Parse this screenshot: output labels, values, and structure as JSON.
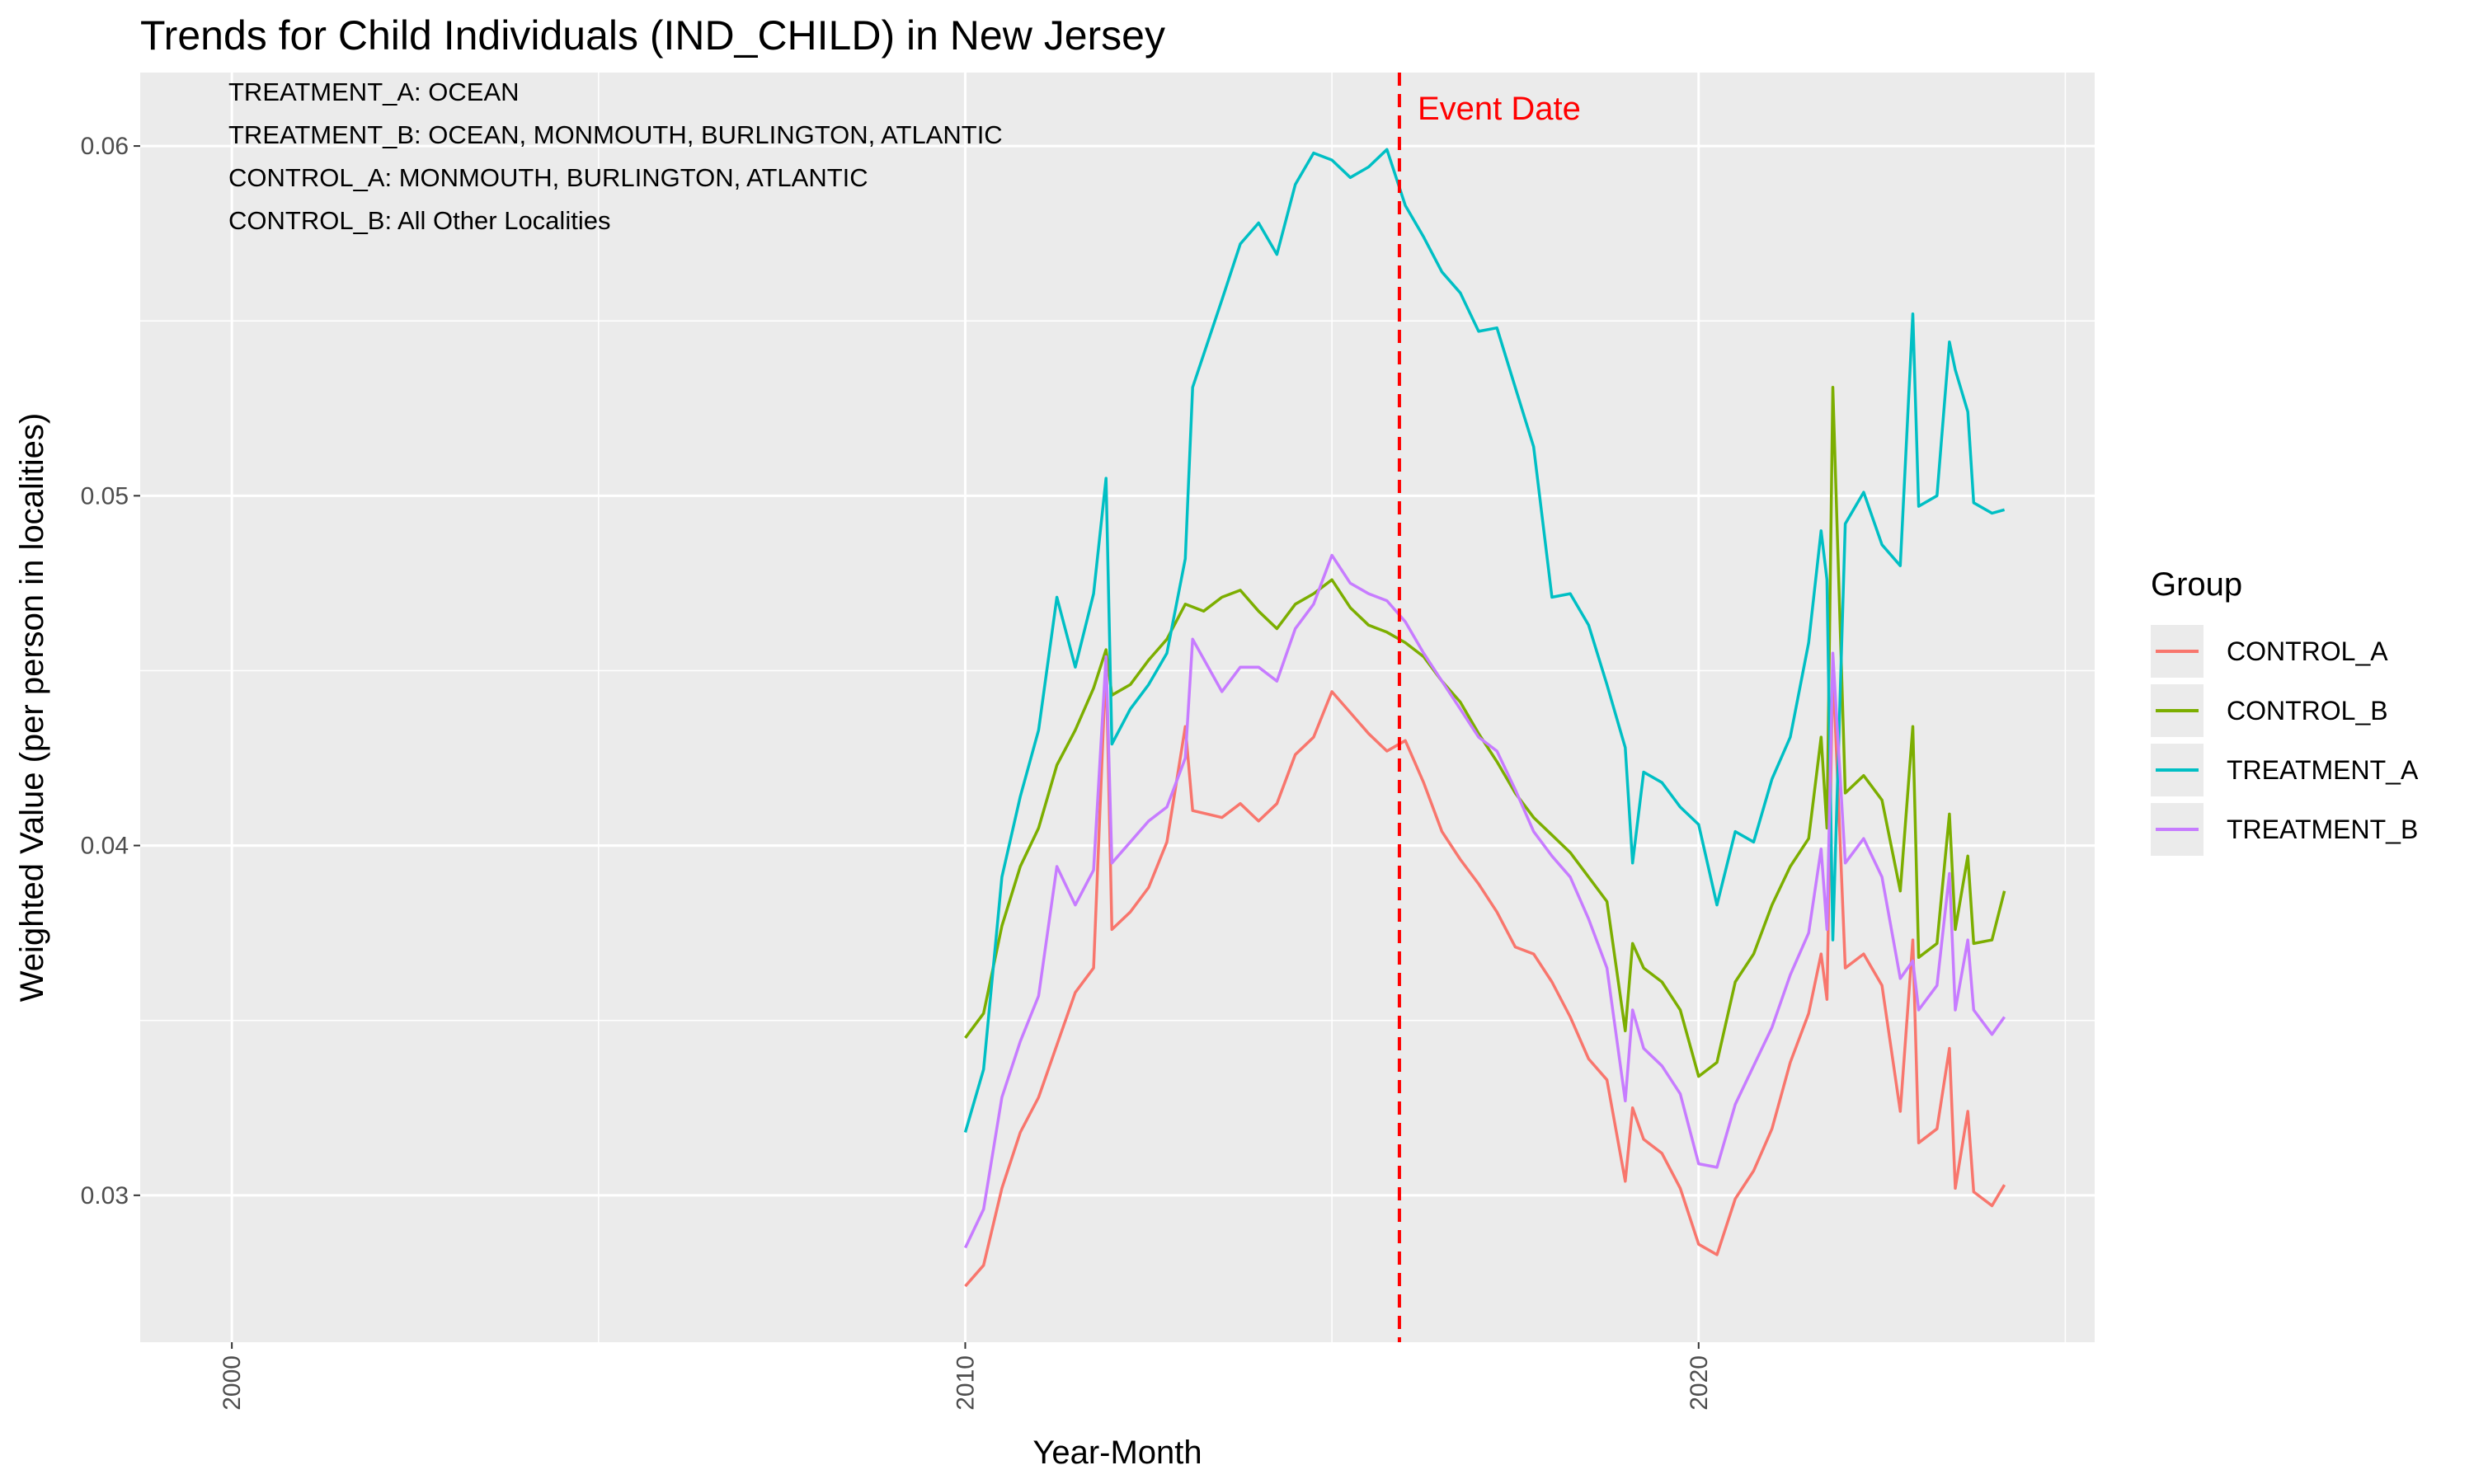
{
  "chart_data": {
    "type": "line",
    "title": "Trends for Child Individuals (IND_CHILD) in New Jersey",
    "xlabel": "Year-Month",
    "ylabel": "Weighted Value (per person in localities)",
    "xlim": [
      1998.75,
      2025.4
    ],
    "ylim": [
      0.0258,
      0.0621
    ],
    "x_ticks": [
      2000,
      2010,
      2020
    ],
    "x_minor_ticks": [
      2005,
      2015,
      2025
    ],
    "y_ticks": [
      0.03,
      0.04,
      0.05,
      0.06
    ],
    "y_tick_labels": [
      "0.03",
      "0.04",
      "0.05",
      "0.06"
    ],
    "y_minor_ticks": [
      0.035,
      0.045,
      0.055
    ],
    "grid": true,
    "legend_title": "Group",
    "legend_position": "right",
    "annotations": [
      "TREATMENT_A: OCEAN",
      "TREATMENT_B: OCEAN, MONMOUTH, BURLINGTON, ATLANTIC",
      "CONTROL_A: MONMOUTH, BURLINGTON, ATLANTIC",
      "CONTROL_B: All Other Localities"
    ],
    "event_line": {
      "x": 2015.92,
      "label": "Event Date",
      "color": "#ff0000"
    },
    "series": [
      {
        "name": "CONTROL_A",
        "color": "#F8766D",
        "points": [
          [
            2010.0,
            0.0274
          ],
          [
            2010.25,
            0.028
          ],
          [
            2010.5,
            0.0302
          ],
          [
            2010.75,
            0.0318
          ],
          [
            2011.0,
            0.0328
          ],
          [
            2011.25,
            0.0343
          ],
          [
            2011.5,
            0.0358
          ],
          [
            2011.75,
            0.0365
          ],
          [
            2011.92,
            0.0453
          ],
          [
            2012.0,
            0.0376
          ],
          [
            2012.25,
            0.0381
          ],
          [
            2012.5,
            0.0388
          ],
          [
            2012.75,
            0.0401
          ],
          [
            2013.0,
            0.0434
          ],
          [
            2013.1,
            0.041
          ],
          [
            2013.5,
            0.0408
          ],
          [
            2013.75,
            0.0412
          ],
          [
            2014.0,
            0.0407
          ],
          [
            2014.25,
            0.0412
          ],
          [
            2014.5,
            0.0426
          ],
          [
            2014.75,
            0.0431
          ],
          [
            2015.0,
            0.0444
          ],
          [
            2015.25,
            0.0438
          ],
          [
            2015.5,
            0.0432
          ],
          [
            2015.75,
            0.0427
          ],
          [
            2016.0,
            0.043
          ],
          [
            2016.25,
            0.0418
          ],
          [
            2016.5,
            0.0404
          ],
          [
            2016.75,
            0.0396
          ],
          [
            2017.0,
            0.0389
          ],
          [
            2017.25,
            0.0381
          ],
          [
            2017.5,
            0.0371
          ],
          [
            2017.75,
            0.0369
          ],
          [
            2018.0,
            0.0361
          ],
          [
            2018.25,
            0.0351
          ],
          [
            2018.5,
            0.0339
          ],
          [
            2018.75,
            0.0333
          ],
          [
            2019.0,
            0.0304
          ],
          [
            2019.1,
            0.0325
          ],
          [
            2019.25,
            0.0316
          ],
          [
            2019.5,
            0.0312
          ],
          [
            2019.75,
            0.0302
          ],
          [
            2020.0,
            0.0286
          ],
          [
            2020.25,
            0.0283
          ],
          [
            2020.5,
            0.0299
          ],
          [
            2020.75,
            0.0307
          ],
          [
            2021.0,
            0.0319
          ],
          [
            2021.25,
            0.0338
          ],
          [
            2021.5,
            0.0352
          ],
          [
            2021.67,
            0.0369
          ],
          [
            2021.75,
            0.0356
          ],
          [
            2021.83,
            0.0452
          ],
          [
            2022.0,
            0.0365
          ],
          [
            2022.25,
            0.0369
          ],
          [
            2022.5,
            0.036
          ],
          [
            2022.75,
            0.0324
          ],
          [
            2022.92,
            0.0373
          ],
          [
            2023.0,
            0.0315
          ],
          [
            2023.25,
            0.0319
          ],
          [
            2023.42,
            0.0342
          ],
          [
            2023.5,
            0.0302
          ],
          [
            2023.67,
            0.0324
          ],
          [
            2023.75,
            0.0301
          ],
          [
            2024.0,
            0.0297
          ],
          [
            2024.17,
            0.0303
          ]
        ]
      },
      {
        "name": "CONTROL_B",
        "color": "#7CAE00",
        "points": [
          [
            2010.0,
            0.0345
          ],
          [
            2010.25,
            0.0352
          ],
          [
            2010.5,
            0.0377
          ],
          [
            2010.75,
            0.0394
          ],
          [
            2011.0,
            0.0405
          ],
          [
            2011.25,
            0.0423
          ],
          [
            2011.5,
            0.0433
          ],
          [
            2011.75,
            0.0445
          ],
          [
            2011.92,
            0.0456
          ],
          [
            2012.0,
            0.0443
          ],
          [
            2012.25,
            0.0446
          ],
          [
            2012.5,
            0.0453
          ],
          [
            2012.75,
            0.0459
          ],
          [
            2013.0,
            0.0469
          ],
          [
            2013.25,
            0.0467
          ],
          [
            2013.5,
            0.0471
          ],
          [
            2013.75,
            0.0473
          ],
          [
            2014.0,
            0.0467
          ],
          [
            2014.25,
            0.0462
          ],
          [
            2014.5,
            0.0469
          ],
          [
            2014.75,
            0.0472
          ],
          [
            2015.0,
            0.0476
          ],
          [
            2015.25,
            0.0468
          ],
          [
            2015.5,
            0.0463
          ],
          [
            2015.75,
            0.0461
          ],
          [
            2016.0,
            0.0458
          ],
          [
            2016.25,
            0.0454
          ],
          [
            2016.5,
            0.0447
          ],
          [
            2016.75,
            0.0441
          ],
          [
            2017.0,
            0.0432
          ],
          [
            2017.25,
            0.0424
          ],
          [
            2017.5,
            0.0415
          ],
          [
            2017.75,
            0.0408
          ],
          [
            2018.0,
            0.0403
          ],
          [
            2018.25,
            0.0398
          ],
          [
            2018.5,
            0.0391
          ],
          [
            2018.75,
            0.0384
          ],
          [
            2019.0,
            0.0347
          ],
          [
            2019.1,
            0.0372
          ],
          [
            2019.25,
            0.0365
          ],
          [
            2019.5,
            0.0361
          ],
          [
            2019.75,
            0.0353
          ],
          [
            2020.0,
            0.0334
          ],
          [
            2020.25,
            0.0338
          ],
          [
            2020.5,
            0.0361
          ],
          [
            2020.75,
            0.0369
          ],
          [
            2021.0,
            0.0383
          ],
          [
            2021.25,
            0.0394
          ],
          [
            2021.5,
            0.0402
          ],
          [
            2021.67,
            0.0431
          ],
          [
            2021.75,
            0.0405
          ],
          [
            2021.83,
            0.0531
          ],
          [
            2022.0,
            0.0415
          ],
          [
            2022.25,
            0.042
          ],
          [
            2022.5,
            0.0413
          ],
          [
            2022.75,
            0.0387
          ],
          [
            2022.92,
            0.0434
          ],
          [
            2023.0,
            0.0368
          ],
          [
            2023.25,
            0.0372
          ],
          [
            2023.42,
            0.0409
          ],
          [
            2023.5,
            0.0376
          ],
          [
            2023.67,
            0.0397
          ],
          [
            2023.75,
            0.0372
          ],
          [
            2024.0,
            0.0373
          ],
          [
            2024.17,
            0.0387
          ]
        ]
      },
      {
        "name": "TREATMENT_A",
        "color": "#00BFC4",
        "points": [
          [
            2010.0,
            0.0318
          ],
          [
            2010.25,
            0.0336
          ],
          [
            2010.5,
            0.0391
          ],
          [
            2010.75,
            0.0414
          ],
          [
            2011.0,
            0.0433
          ],
          [
            2011.25,
            0.0471
          ],
          [
            2011.5,
            0.0451
          ],
          [
            2011.75,
            0.0472
          ],
          [
            2011.92,
            0.0505
          ],
          [
            2012.0,
            0.0429
          ],
          [
            2012.25,
            0.0439
          ],
          [
            2012.5,
            0.0446
          ],
          [
            2012.75,
            0.0455
          ],
          [
            2013.0,
            0.0482
          ],
          [
            2013.1,
            0.0531
          ],
          [
            2013.5,
            0.0556
          ],
          [
            2013.75,
            0.0572
          ],
          [
            2014.0,
            0.0578
          ],
          [
            2014.25,
            0.0569
          ],
          [
            2014.5,
            0.0589
          ],
          [
            2014.75,
            0.0598
          ],
          [
            2015.0,
            0.0596
          ],
          [
            2015.25,
            0.0591
          ],
          [
            2015.5,
            0.0594
          ],
          [
            2015.75,
            0.0599
          ],
          [
            2016.0,
            0.0583
          ],
          [
            2016.25,
            0.0574
          ],
          [
            2016.5,
            0.0564
          ],
          [
            2016.75,
            0.0558
          ],
          [
            2017.0,
            0.0547
          ],
          [
            2017.25,
            0.0548
          ],
          [
            2017.5,
            0.0531
          ],
          [
            2017.75,
            0.0514
          ],
          [
            2018.0,
            0.0471
          ],
          [
            2018.25,
            0.0472
          ],
          [
            2018.5,
            0.0463
          ],
          [
            2018.75,
            0.0446
          ],
          [
            2019.0,
            0.0428
          ],
          [
            2019.1,
            0.0395
          ],
          [
            2019.25,
            0.0421
          ],
          [
            2019.5,
            0.0418
          ],
          [
            2019.75,
            0.0411
          ],
          [
            2020.0,
            0.0406
          ],
          [
            2020.25,
            0.0383
          ],
          [
            2020.5,
            0.0404
          ],
          [
            2020.75,
            0.0401
          ],
          [
            2021.0,
            0.0419
          ],
          [
            2021.25,
            0.0431
          ],
          [
            2021.5,
            0.0458
          ],
          [
            2021.67,
            0.049
          ],
          [
            2021.75,
            0.0476
          ],
          [
            2021.83,
            0.0373
          ],
          [
            2022.0,
            0.0492
          ],
          [
            2022.25,
            0.0501
          ],
          [
            2022.5,
            0.0486
          ],
          [
            2022.75,
            0.048
          ],
          [
            2022.92,
            0.0552
          ],
          [
            2023.0,
            0.0497
          ],
          [
            2023.25,
            0.05
          ],
          [
            2023.42,
            0.0544
          ],
          [
            2023.5,
            0.0536
          ],
          [
            2023.67,
            0.0524
          ],
          [
            2023.75,
            0.0498
          ],
          [
            2024.0,
            0.0495
          ],
          [
            2024.17,
            0.0496
          ]
        ]
      },
      {
        "name": "TREATMENT_B",
        "color": "#C77CFF",
        "points": [
          [
            2010.0,
            0.0285
          ],
          [
            2010.25,
            0.0296
          ],
          [
            2010.5,
            0.0328
          ],
          [
            2010.75,
            0.0344
          ],
          [
            2011.0,
            0.0357
          ],
          [
            2011.25,
            0.0394
          ],
          [
            2011.5,
            0.0383
          ],
          [
            2011.75,
            0.0393
          ],
          [
            2011.92,
            0.0454
          ],
          [
            2012.0,
            0.0395
          ],
          [
            2012.25,
            0.0401
          ],
          [
            2012.5,
            0.0407
          ],
          [
            2012.75,
            0.0411
          ],
          [
            2013.0,
            0.0425
          ],
          [
            2013.1,
            0.0459
          ],
          [
            2013.5,
            0.0444
          ],
          [
            2013.75,
            0.0451
          ],
          [
            2014.0,
            0.0451
          ],
          [
            2014.25,
            0.0447
          ],
          [
            2014.5,
            0.0462
          ],
          [
            2014.75,
            0.0469
          ],
          [
            2015.0,
            0.0483
          ],
          [
            2015.25,
            0.0475
          ],
          [
            2015.5,
            0.0472
          ],
          [
            2015.75,
            0.047
          ],
          [
            2016.0,
            0.0464
          ],
          [
            2016.25,
            0.0455
          ],
          [
            2016.5,
            0.0447
          ],
          [
            2016.75,
            0.0439
          ],
          [
            2017.0,
            0.0431
          ],
          [
            2017.25,
            0.0427
          ],
          [
            2017.5,
            0.0416
          ],
          [
            2017.75,
            0.0404
          ],
          [
            2018.0,
            0.0397
          ],
          [
            2018.25,
            0.0391
          ],
          [
            2018.5,
            0.0379
          ],
          [
            2018.75,
            0.0365
          ],
          [
            2019.0,
            0.0327
          ],
          [
            2019.1,
            0.0353
          ],
          [
            2019.25,
            0.0342
          ],
          [
            2019.5,
            0.0337
          ],
          [
            2019.75,
            0.0329
          ],
          [
            2020.0,
            0.0309
          ],
          [
            2020.25,
            0.0308
          ],
          [
            2020.5,
            0.0326
          ],
          [
            2020.75,
            0.0337
          ],
          [
            2021.0,
            0.0348
          ],
          [
            2021.25,
            0.0363
          ],
          [
            2021.5,
            0.0375
          ],
          [
            2021.67,
            0.0399
          ],
          [
            2021.75,
            0.0376
          ],
          [
            2021.83,
            0.0455
          ],
          [
            2022.0,
            0.0395
          ],
          [
            2022.25,
            0.0402
          ],
          [
            2022.5,
            0.0391
          ],
          [
            2022.75,
            0.0362
          ],
          [
            2022.92,
            0.0367
          ],
          [
            2023.0,
            0.0353
          ],
          [
            2023.25,
            0.036
          ],
          [
            2023.42,
            0.0392
          ],
          [
            2023.5,
            0.0353
          ],
          [
            2023.67,
            0.0373
          ],
          [
            2023.75,
            0.0353
          ],
          [
            2024.0,
            0.0346
          ],
          [
            2024.17,
            0.0351
          ]
        ]
      }
    ]
  }
}
